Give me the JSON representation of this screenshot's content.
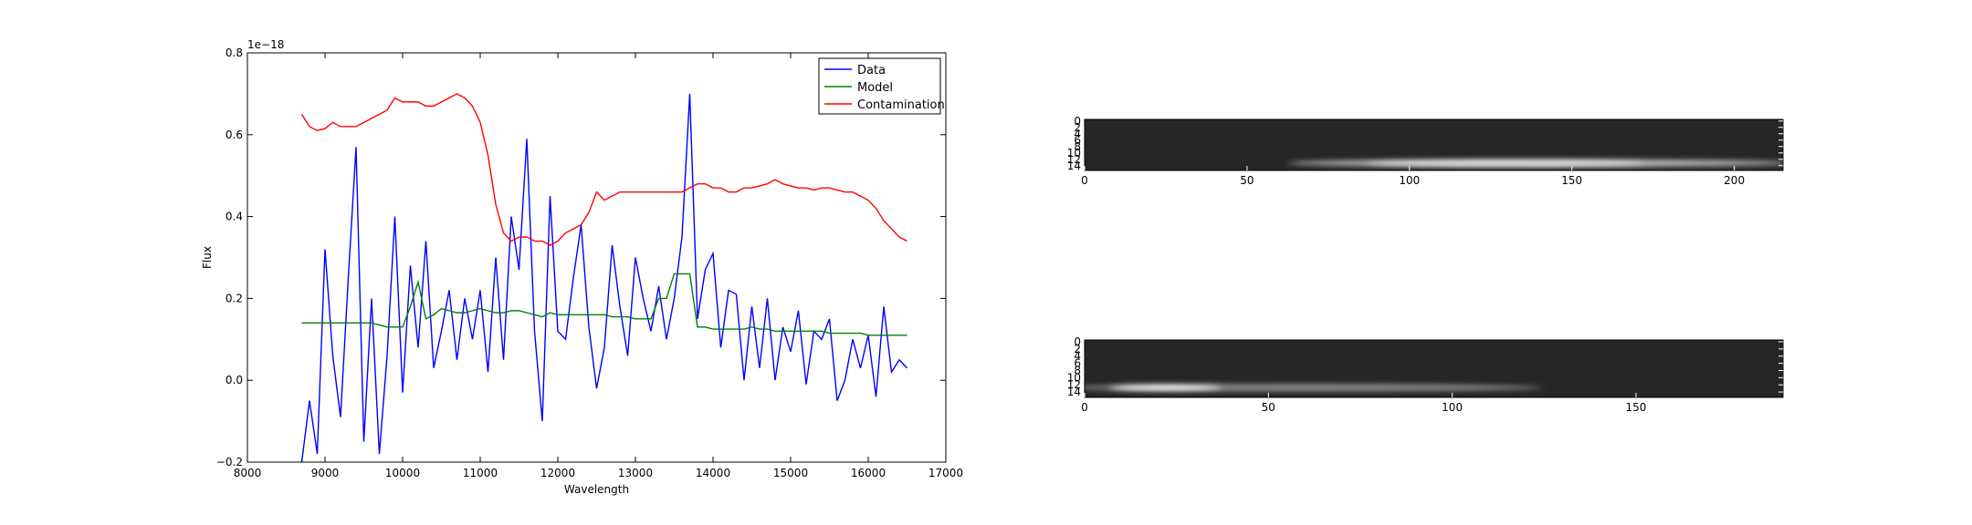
{
  "chart_data": [
    {
      "type": "line",
      "xlabel": "Wavelength",
      "ylabel": "Flux",
      "y_offset_label": "1e−18",
      "x": [
        8700,
        8800,
        8900,
        9000,
        9100,
        9200,
        9300,
        9400,
        9500,
        9600,
        9700,
        9800,
        9900,
        10000,
        10100,
        10200,
        10300,
        10400,
        10500,
        10600,
        10700,
        10800,
        10900,
        11000,
        11100,
        11200,
        11300,
        11400,
        11500,
        11600,
        11700,
        11800,
        11900,
        12000,
        12100,
        12200,
        12300,
        12400,
        12500,
        12600,
        12700,
        12800,
        12900,
        13000,
        13100,
        13200,
        13300,
        13400,
        13500,
        13600,
        13700,
        13800,
        13900,
        14000,
        14100,
        14200,
        14300,
        14400,
        14500,
        14600,
        14700,
        14800,
        14900,
        15000,
        15100,
        15200,
        15300,
        15400,
        15500,
        15600,
        15700,
        15800,
        15900,
        16000,
        16100,
        16200,
        16300,
        16400,
        16500
      ],
      "series": [
        {
          "name": "Data",
          "color": "#0000ff",
          "values": [
            -0.2,
            -0.05,
            -0.18,
            0.32,
            0.06,
            -0.09,
            0.25,
            0.57,
            -0.15,
            0.2,
            -0.18,
            0.06,
            0.4,
            -0.03,
            0.28,
            0.08,
            0.34,
            0.03,
            0.12,
            0.22,
            0.05,
            0.2,
            0.1,
            0.22,
            0.02,
            0.3,
            0.05,
            0.4,
            0.27,
            0.59,
            0.12,
            -0.1,
            0.45,
            0.12,
            0.1,
            0.25,
            0.38,
            0.13,
            -0.02,
            0.08,
            0.33,
            0.18,
            0.06,
            0.3,
            0.2,
            0.12,
            0.23,
            0.1,
            0.2,
            0.35,
            0.7,
            0.15,
            0.27,
            0.31,
            0.08,
            0.22,
            0.21,
            0.0,
            0.18,
            0.03,
            0.2,
            0.0,
            0.13,
            0.07,
            0.17,
            -0.01,
            0.12,
            0.1,
            0.15,
            -0.05,
            0.0,
            0.1,
            0.03,
            0.11,
            -0.04,
            0.18,
            0.02,
            0.05,
            0.03
          ]
        },
        {
          "name": "Model",
          "color": "#008000",
          "values": [
            0.14,
            0.14,
            0.14,
            0.14,
            0.14,
            0.14,
            0.14,
            0.14,
            0.14,
            0.14,
            0.135,
            0.13,
            0.13,
            0.13,
            0.18,
            0.24,
            0.15,
            0.16,
            0.175,
            0.17,
            0.165,
            0.165,
            0.17,
            0.175,
            0.17,
            0.165,
            0.165,
            0.17,
            0.17,
            0.165,
            0.16,
            0.155,
            0.165,
            0.16,
            0.16,
            0.16,
            0.16,
            0.16,
            0.16,
            0.16,
            0.155,
            0.155,
            0.155,
            0.15,
            0.15,
            0.15,
            0.2,
            0.2,
            0.26,
            0.26,
            0.26,
            0.13,
            0.13,
            0.125,
            0.125,
            0.125,
            0.125,
            0.125,
            0.13,
            0.125,
            0.125,
            0.12,
            0.12,
            0.12,
            0.12,
            0.12,
            0.12,
            0.12,
            0.115,
            0.115,
            0.115,
            0.115,
            0.115,
            0.11,
            0.11,
            0.11,
            0.11,
            0.11,
            0.11
          ]
        },
        {
          "name": "Contamination",
          "color": "#ff0000",
          "values": [
            0.65,
            0.62,
            0.61,
            0.615,
            0.63,
            0.62,
            0.62,
            0.62,
            0.63,
            0.64,
            0.65,
            0.66,
            0.69,
            0.68,
            0.68,
            0.68,
            0.67,
            0.67,
            0.68,
            0.69,
            0.7,
            0.69,
            0.67,
            0.63,
            0.55,
            0.43,
            0.36,
            0.34,
            0.35,
            0.35,
            0.34,
            0.34,
            0.33,
            0.34,
            0.36,
            0.37,
            0.38,
            0.41,
            0.46,
            0.44,
            0.45,
            0.46,
            0.46,
            0.46,
            0.46,
            0.46,
            0.46,
            0.46,
            0.46,
            0.46,
            0.47,
            0.48,
            0.48,
            0.47,
            0.47,
            0.46,
            0.46,
            0.47,
            0.47,
            0.475,
            0.48,
            0.49,
            0.48,
            0.475,
            0.47,
            0.47,
            0.465,
            0.47,
            0.47,
            0.465,
            0.46,
            0.46,
            0.45,
            0.44,
            0.42,
            0.39,
            0.37,
            0.35,
            0.34
          ]
        }
      ],
      "xlim": [
        8000,
        17000
      ],
      "xticks": [
        8000,
        9000,
        10000,
        11000,
        12000,
        13000,
        14000,
        15000,
        16000,
        17000
      ],
      "ylim": [
        -0.2,
        0.8
      ],
      "yticks": [
        {
          "value": -0.2,
          "label": "−0.2"
        },
        {
          "value": 0,
          "label": "0.0"
        },
        0.2,
        0.4,
        0.6,
        0.8
      ],
      "legend": "upper right",
      "grid": false
    },
    {
      "type": "image",
      "xlim": [
        0,
        215
      ],
      "xticks": [
        0,
        50,
        100,
        150,
        200
      ],
      "ylim": [
        -0.5,
        15.5
      ],
      "yticks": [
        0,
        2,
        4,
        6,
        8,
        10,
        12,
        14
      ]
    },
    {
      "type": "image",
      "xlim": [
        0,
        190
      ],
      "xticks": [
        0,
        50,
        100,
        150
      ],
      "ylim": [
        -0.5,
        15.5
      ],
      "yticks": [
        0,
        2,
        4,
        6,
        8,
        10,
        12,
        14
      ]
    }
  ]
}
